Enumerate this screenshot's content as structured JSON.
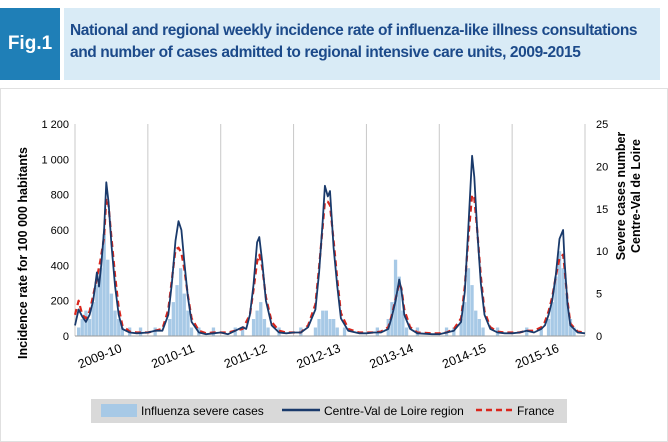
{
  "figure": {
    "label": "Fig.1",
    "title": "National and regional weekly incidence rate of influenza-like illness consultations and number of cases admitted to regional intensive care units, 2009-2015"
  },
  "colors": {
    "badge": "#1f7fb7",
    "title_bg": "#d9ebf6",
    "title_text": "#1c4a8a",
    "severe_cases": "#a7c9e6",
    "region_line": "#1a3a6b",
    "france_line": "#d9261c",
    "legend_bg": "#d9d9d9"
  },
  "chart_data": {
    "type": "line",
    "x_axis": {
      "tick_labels": [
        "2009-10",
        "2010-11",
        "2011-12",
        "2012-13",
        "2013-14",
        "2014-15",
        "2015-16"
      ],
      "range": [
        0,
        7
      ]
    },
    "y_left": {
      "label": "Incidence rate for 100 000 habitants",
      "range": [
        0,
        1200
      ],
      "ticks": [
        0,
        200,
        400,
        600,
        800,
        1000,
        1200
      ],
      "tick_labels": [
        "0",
        "200",
        "400",
        "600",
        "800",
        "1 000",
        "1 200"
      ]
    },
    "y_right": {
      "label_line1": "Severe cases number",
      "label_line2": "Centre-Val de Loire",
      "range": [
        0,
        25
      ],
      "ticks": [
        0,
        5,
        10,
        15,
        20,
        25
      ],
      "tick_labels": [
        "0",
        "5",
        "10",
        "15",
        "20",
        "25"
      ]
    },
    "grid": {
      "vertical_season_lines": true,
      "horizontal": false
    },
    "legend_position": "bottom",
    "series": [
      {
        "name": "Influenza severe cases",
        "kind": "bar",
        "axis": "right",
        "points": [
          [
            0.05,
            1
          ],
          [
            0.1,
            2
          ],
          [
            0.15,
            3
          ],
          [
            0.2,
            2
          ],
          [
            0.25,
            4
          ],
          [
            0.3,
            6
          ],
          [
            0.35,
            8
          ],
          [
            0.4,
            12
          ],
          [
            0.45,
            9
          ],
          [
            0.5,
            5
          ],
          [
            0.55,
            3
          ],
          [
            0.6,
            2
          ],
          [
            0.65,
            1
          ],
          [
            0.75,
            1
          ],
          [
            0.9,
            1
          ],
          [
            1.1,
            1
          ],
          [
            1.3,
            2
          ],
          [
            1.35,
            4
          ],
          [
            1.4,
            6
          ],
          [
            1.45,
            8
          ],
          [
            1.5,
            5
          ],
          [
            1.55,
            3
          ],
          [
            1.6,
            1
          ],
          [
            1.7,
            1
          ],
          [
            1.9,
            1
          ],
          [
            2.2,
            1
          ],
          [
            2.3,
            1
          ],
          [
            2.45,
            2
          ],
          [
            2.5,
            3
          ],
          [
            2.55,
            4
          ],
          [
            2.6,
            2
          ],
          [
            2.65,
            1
          ],
          [
            2.8,
            1
          ],
          [
            3.1,
            1
          ],
          [
            3.3,
            1
          ],
          [
            3.35,
            2
          ],
          [
            3.4,
            3
          ],
          [
            3.45,
            3
          ],
          [
            3.5,
            2
          ],
          [
            3.55,
            2
          ],
          [
            3.6,
            1
          ],
          [
            3.7,
            1
          ],
          [
            4.15,
            1
          ],
          [
            4.3,
            2
          ],
          [
            4.35,
            4
          ],
          [
            4.4,
            9
          ],
          [
            4.45,
            7
          ],
          [
            4.5,
            3
          ],
          [
            4.55,
            1
          ],
          [
            4.7,
            1
          ],
          [
            5.1,
            1
          ],
          [
            5.2,
            1
          ],
          [
            5.3,
            2
          ],
          [
            5.35,
            4
          ],
          [
            5.4,
            8
          ],
          [
            5.45,
            6
          ],
          [
            5.5,
            3
          ],
          [
            5.55,
            2
          ],
          [
            5.6,
            1
          ],
          [
            5.8,
            1
          ],
          [
            6.2,
            1
          ],
          [
            6.4,
            1
          ],
          [
            6.5,
            2
          ],
          [
            6.55,
            4
          ],
          [
            6.6,
            7
          ],
          [
            6.65,
            10
          ],
          [
            6.7,
            8
          ],
          [
            6.75,
            5
          ],
          [
            6.8,
            2
          ],
          [
            6.85,
            1
          ]
        ]
      },
      {
        "name": "Centre-Val de Loire region",
        "kind": "line",
        "axis": "left",
        "points": [
          [
            0,
            60
          ],
          [
            0.05,
            150
          ],
          [
            0.1,
            110
          ],
          [
            0.15,
            80
          ],
          [
            0.2,
            120
          ],
          [
            0.25,
            200
          ],
          [
            0.3,
            360
          ],
          [
            0.33,
            280
          ],
          [
            0.36,
            400
          ],
          [
            0.4,
            600
          ],
          [
            0.43,
            870
          ],
          [
            0.46,
            760
          ],
          [
            0.5,
            520
          ],
          [
            0.55,
            280
          ],
          [
            0.6,
            120
          ],
          [
            0.65,
            40
          ],
          [
            0.75,
            20
          ],
          [
            0.85,
            15
          ],
          [
            1.0,
            20
          ],
          [
            1.1,
            30
          ],
          [
            1.2,
            30
          ],
          [
            1.28,
            120
          ],
          [
            1.33,
            300
          ],
          [
            1.38,
            540
          ],
          [
            1.42,
            650
          ],
          [
            1.46,
            600
          ],
          [
            1.5,
            420
          ],
          [
            1.55,
            220
          ],
          [
            1.6,
            80
          ],
          [
            1.7,
            20
          ],
          [
            1.8,
            10
          ],
          [
            1.9,
            15
          ],
          [
            2.0,
            20
          ],
          [
            2.1,
            10
          ],
          [
            2.2,
            30
          ],
          [
            2.3,
            50
          ],
          [
            2.35,
            40
          ],
          [
            2.4,
            120
          ],
          [
            2.45,
            290
          ],
          [
            2.5,
            530
          ],
          [
            2.53,
            560
          ],
          [
            2.57,
            420
          ],
          [
            2.62,
            200
          ],
          [
            2.7,
            60
          ],
          [
            2.8,
            20
          ],
          [
            2.9,
            15
          ],
          [
            3.0,
            20
          ],
          [
            3.1,
            20
          ],
          [
            3.2,
            50
          ],
          [
            3.3,
            150
          ],
          [
            3.35,
            360
          ],
          [
            3.4,
            650
          ],
          [
            3.43,
            850
          ],
          [
            3.47,
            790
          ],
          [
            3.5,
            820
          ],
          [
            3.55,
            500
          ],
          [
            3.6,
            280
          ],
          [
            3.65,
            100
          ],
          [
            3.75,
            30
          ],
          [
            3.9,
            15
          ],
          [
            4.0,
            15
          ],
          [
            4.1,
            20
          ],
          [
            4.2,
            20
          ],
          [
            4.3,
            40
          ],
          [
            4.35,
            110
          ],
          [
            4.4,
            200
          ],
          [
            4.45,
            320
          ],
          [
            4.48,
            260
          ],
          [
            4.52,
            120
          ],
          [
            4.6,
            40
          ],
          [
            4.7,
            15
          ],
          [
            4.9,
            10
          ],
          [
            5.0,
            10
          ],
          [
            5.1,
            20
          ],
          [
            5.2,
            30
          ],
          [
            5.3,
            80
          ],
          [
            5.35,
            250
          ],
          [
            5.4,
            620
          ],
          [
            5.45,
            1020
          ],
          [
            5.48,
            900
          ],
          [
            5.52,
            600
          ],
          [
            5.57,
            300
          ],
          [
            5.62,
            120
          ],
          [
            5.7,
            40
          ],
          [
            5.8,
            20
          ],
          [
            5.9,
            15
          ],
          [
            6.0,
            15
          ],
          [
            6.1,
            20
          ],
          [
            6.2,
            30
          ],
          [
            6.3,
            20
          ],
          [
            6.4,
            40
          ],
          [
            6.45,
            60
          ],
          [
            6.5,
            120
          ],
          [
            6.55,
            200
          ],
          [
            6.6,
            350
          ],
          [
            6.65,
            550
          ],
          [
            6.7,
            600
          ],
          [
            6.72,
            420
          ],
          [
            6.76,
            180
          ],
          [
            6.8,
            60
          ],
          [
            6.9,
            20
          ],
          [
            7.0,
            15
          ]
        ]
      },
      {
        "name": "France",
        "kind": "line",
        "axis": "left",
        "points": [
          [
            0,
            120
          ],
          [
            0.05,
            200
          ],
          [
            0.1,
            120
          ],
          [
            0.15,
            100
          ],
          [
            0.2,
            140
          ],
          [
            0.25,
            230
          ],
          [
            0.3,
            330
          ],
          [
            0.35,
            430
          ],
          [
            0.4,
            560
          ],
          [
            0.43,
            780
          ],
          [
            0.46,
            740
          ],
          [
            0.5,
            560
          ],
          [
            0.55,
            340
          ],
          [
            0.6,
            160
          ],
          [
            0.65,
            60
          ],
          [
            0.75,
            25
          ],
          [
            0.85,
            20
          ],
          [
            1.0,
            20
          ],
          [
            1.1,
            30
          ],
          [
            1.2,
            40
          ],
          [
            1.28,
            150
          ],
          [
            1.33,
            320
          ],
          [
            1.38,
            490
          ],
          [
            1.42,
            500
          ],
          [
            1.46,
            470
          ],
          [
            1.5,
            380
          ],
          [
            1.55,
            230
          ],
          [
            1.6,
            100
          ],
          [
            1.7,
            30
          ],
          [
            1.8,
            15
          ],
          [
            1.9,
            20
          ],
          [
            2.0,
            20
          ],
          [
            2.1,
            20
          ],
          [
            2.2,
            30
          ],
          [
            2.3,
            40
          ],
          [
            2.4,
            120
          ],
          [
            2.45,
            260
          ],
          [
            2.5,
            420
          ],
          [
            2.53,
            460
          ],
          [
            2.57,
            390
          ],
          [
            2.62,
            220
          ],
          [
            2.7,
            80
          ],
          [
            2.8,
            30
          ],
          [
            2.9,
            20
          ],
          [
            3.0,
            20
          ],
          [
            3.1,
            20
          ],
          [
            3.2,
            60
          ],
          [
            3.3,
            180
          ],
          [
            3.35,
            390
          ],
          [
            3.4,
            620
          ],
          [
            3.43,
            760
          ],
          [
            3.47,
            760
          ],
          [
            3.5,
            740
          ],
          [
            3.55,
            540
          ],
          [
            3.6,
            320
          ],
          [
            3.65,
            130
          ],
          [
            3.75,
            40
          ],
          [
            3.9,
            20
          ],
          [
            4.0,
            20
          ],
          [
            4.1,
            20
          ],
          [
            4.2,
            25
          ],
          [
            4.3,
            50
          ],
          [
            4.35,
            120
          ],
          [
            4.4,
            210
          ],
          [
            4.45,
            300
          ],
          [
            4.48,
            270
          ],
          [
            4.52,
            150
          ],
          [
            4.6,
            50
          ],
          [
            4.7,
            20
          ],
          [
            4.9,
            15
          ],
          [
            5.0,
            15
          ],
          [
            5.1,
            20
          ],
          [
            5.2,
            40
          ],
          [
            5.3,
            100
          ],
          [
            5.35,
            280
          ],
          [
            5.4,
            560
          ],
          [
            5.45,
            800
          ],
          [
            5.48,
            780
          ],
          [
            5.52,
            600
          ],
          [
            5.57,
            340
          ],
          [
            5.62,
            140
          ],
          [
            5.7,
            50
          ],
          [
            5.8,
            25
          ],
          [
            5.9,
            20
          ],
          [
            6.0,
            20
          ],
          [
            6.1,
            20
          ],
          [
            6.2,
            30
          ],
          [
            6.3,
            30
          ],
          [
            6.4,
            50
          ],
          [
            6.45,
            80
          ],
          [
            6.5,
            140
          ],
          [
            6.55,
            220
          ],
          [
            6.6,
            340
          ],
          [
            6.65,
            440
          ],
          [
            6.7,
            460
          ],
          [
            6.72,
            380
          ],
          [
            6.76,
            200
          ],
          [
            6.8,
            70
          ],
          [
            6.9,
            25
          ],
          [
            7.0,
            20
          ]
        ]
      }
    ]
  }
}
